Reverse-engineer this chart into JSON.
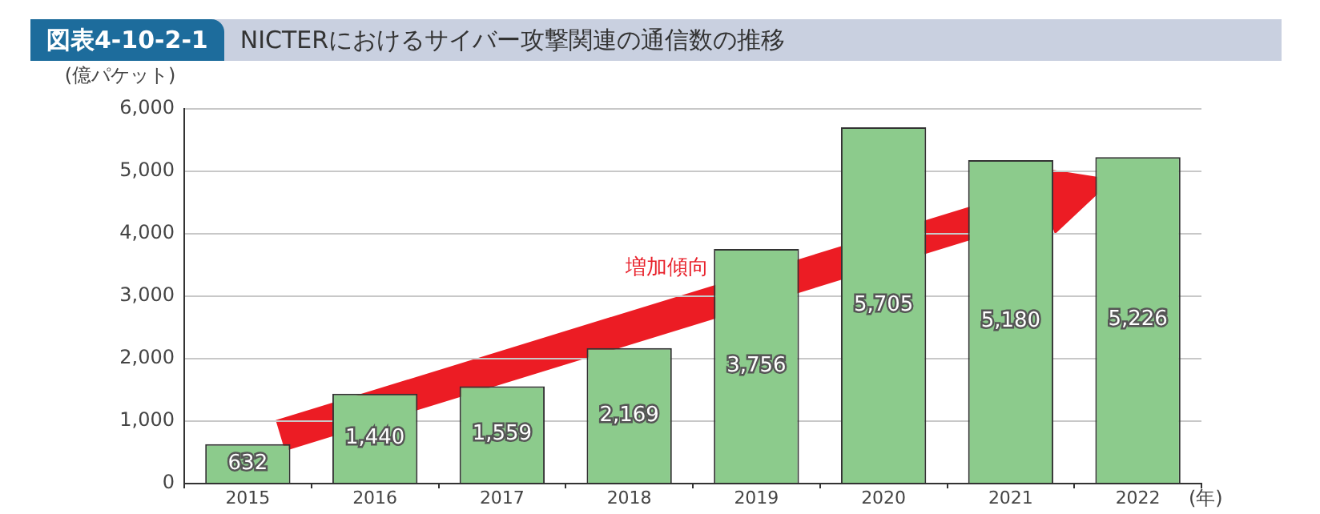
{
  "chart_data": {
    "type": "bar",
    "title": "NICTERにおけるサイバー攻撃関連の通信数の推移",
    "ylabel": "(億パケット)",
    "xlabel": "(年)",
    "annotations": [
      "図表4-10-2-1",
      "増加傾向"
    ],
    "categories": [
      "2015",
      "2016",
      "2017",
      "2018",
      "2019",
      "2020",
      "2021",
      "2022"
    ],
    "values": [
      632,
      1440,
      1559,
      2169,
      3756,
      5705,
      5180,
      5226
    ],
    "color": "#8ccb8c",
    "ylim": [
      0,
      6000
    ],
    "yticks": [
      {
        "value": 0,
        "label": "0"
      },
      {
        "value": 1000,
        "label": "1,000"
      },
      {
        "value": 2000,
        "label": "2,000"
      },
      {
        "value": 3000,
        "label": "3,000"
      },
      {
        "value": 4000,
        "label": "4,000"
      },
      {
        "value": 5000,
        "label": "5,000"
      },
      {
        "value": 6000,
        "label": "6,000"
      }
    ],
    "grid": "y",
    "legend": false,
    "value_labels": [
      "632",
      "1,440",
      "1,559",
      "2,169",
      "3,756",
      "5,705",
      "5,180",
      "5,226"
    ]
  }
}
